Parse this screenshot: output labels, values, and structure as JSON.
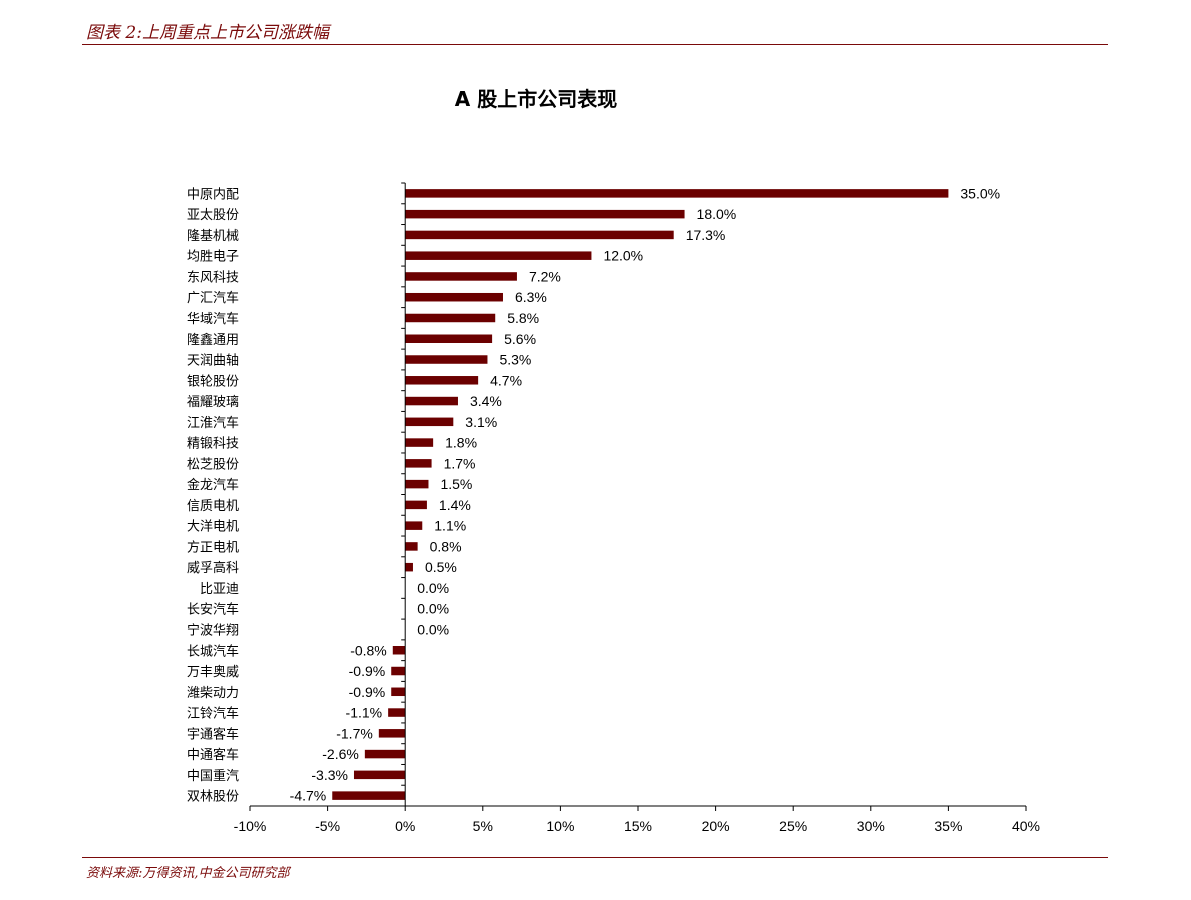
{
  "header": {
    "title": "图表 2:上周重点上市公司涨跌幅"
  },
  "footer": {
    "source": "资料来源:万得资讯,中金公司研究部"
  },
  "colors": {
    "accent": "#7a0a0a",
    "bar": "#6b0000"
  },
  "chart_data": {
    "type": "bar",
    "orientation": "horizontal",
    "title": "A 股上市公司表现",
    "xlabel": "",
    "ylabel": "",
    "xlim": [
      -10,
      40
    ],
    "xticks": [
      -10,
      -5,
      0,
      5,
      10,
      15,
      20,
      25,
      30,
      35,
      40
    ],
    "xtick_labels": [
      "-10%",
      "-5%",
      "0%",
      "5%",
      "10%",
      "15%",
      "20%",
      "25%",
      "30%",
      "35%",
      "40%"
    ],
    "grid": false,
    "legend": "none",
    "categories": [
      "中原内配",
      "亚太股份",
      "隆基机械",
      "均胜电子",
      "东风科技",
      "广汇汽车",
      "华域汽车",
      "隆鑫通用",
      "天润曲轴",
      "银轮股份",
      "福耀玻璃",
      "江淮汽车",
      "精锻科技",
      "松芝股份",
      "金龙汽车",
      "信质电机",
      "大洋电机",
      "方正电机",
      "威孚高科",
      "比亚迪",
      "长安汽车",
      "宁波华翔",
      "长城汽车",
      "万丰奥威",
      "潍柴动力",
      "江铃汽车",
      "宇通客车",
      "中通客车",
      "中国重汽",
      "双林股份"
    ],
    "values": [
      35.0,
      18.0,
      17.3,
      12.0,
      7.2,
      6.3,
      5.8,
      5.6,
      5.3,
      4.7,
      3.4,
      3.1,
      1.8,
      1.7,
      1.5,
      1.4,
      1.1,
      0.8,
      0.5,
      0.0,
      0.0,
      0.0,
      -0.8,
      -0.9,
      -0.9,
      -1.1,
      -1.7,
      -2.6,
      -3.3,
      -4.7
    ],
    "value_labels": [
      "35.0%",
      "18.0%",
      "17.3%",
      "12.0%",
      "7.2%",
      "6.3%",
      "5.8%",
      "5.6%",
      "5.3%",
      "4.7%",
      "3.4%",
      "3.1%",
      "1.8%",
      "1.7%",
      "1.5%",
      "1.4%",
      "1.1%",
      "0.8%",
      "0.5%",
      "0.0%",
      "0.0%",
      "0.0%",
      "-0.8%",
      "-0.9%",
      "-0.9%",
      "-1.1%",
      "-1.7%",
      "-2.6%",
      "-3.3%",
      "-4.7%"
    ]
  }
}
